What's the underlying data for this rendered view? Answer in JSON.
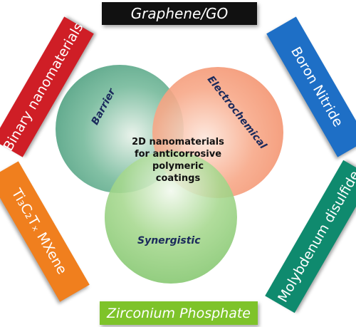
{
  "center": {
    "lines": [
      "2D nanomaterials",
      "for anticorrosive",
      "polymeric",
      "coatings"
    ]
  },
  "circles": {
    "barrier": "Barrier",
    "electrochemical": "Electrochemical",
    "synergistic": "Synergistic"
  },
  "materials": {
    "top": "Graphene/GO",
    "bottom": "Zirconium Phosphate",
    "left_top": "Binary nanomaterials",
    "left_bottom": "Ti₃C₂Tₓ MXene",
    "right_top": "Boron Nitride",
    "right_bottom": "Molybdenum disulfide"
  },
  "colors": {
    "top": "#111111",
    "bottom": "#7ec32a",
    "left_top": "#cf1e26",
    "left_bottom": "#f07f1e",
    "right_top": "#1e6fc6",
    "right_bottom": "#0f8a6e",
    "barrier_circle": "#5aa88a",
    "electrochemical_circle": "#f59a78",
    "synergistic_circle": "#8fcf7a"
  }
}
